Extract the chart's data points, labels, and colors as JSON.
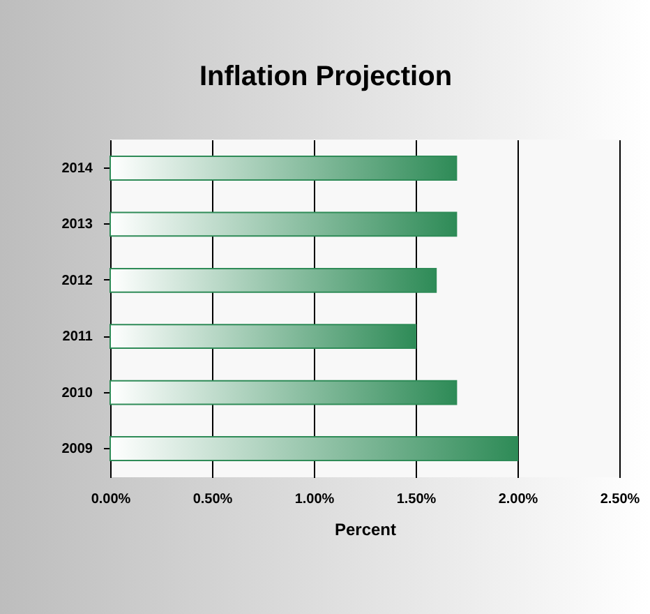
{
  "chart_data": {
    "type": "bar",
    "orientation": "horizontal",
    "title": "Inflation Projection",
    "xlabel": "Percent",
    "categories": [
      "2014",
      "2013",
      "2012",
      "2011",
      "2010",
      "2009"
    ],
    "values": [
      1.7,
      1.7,
      1.6,
      1.5,
      1.7,
      2.0
    ],
    "color": "#2e8b57",
    "xlim": [
      0,
      2.5
    ],
    "xticks": [
      {
        "value": 0,
        "label": "0.00%"
      },
      {
        "value": 0.5,
        "label": "0.50%"
      },
      {
        "value": 1,
        "label": "1.00%"
      },
      {
        "value": 1.5,
        "label": "1.50%"
      },
      {
        "value": 2,
        "label": "2.00%"
      },
      {
        "value": 2.5,
        "label": "2.50%"
      }
    ],
    "grid": "x"
  }
}
